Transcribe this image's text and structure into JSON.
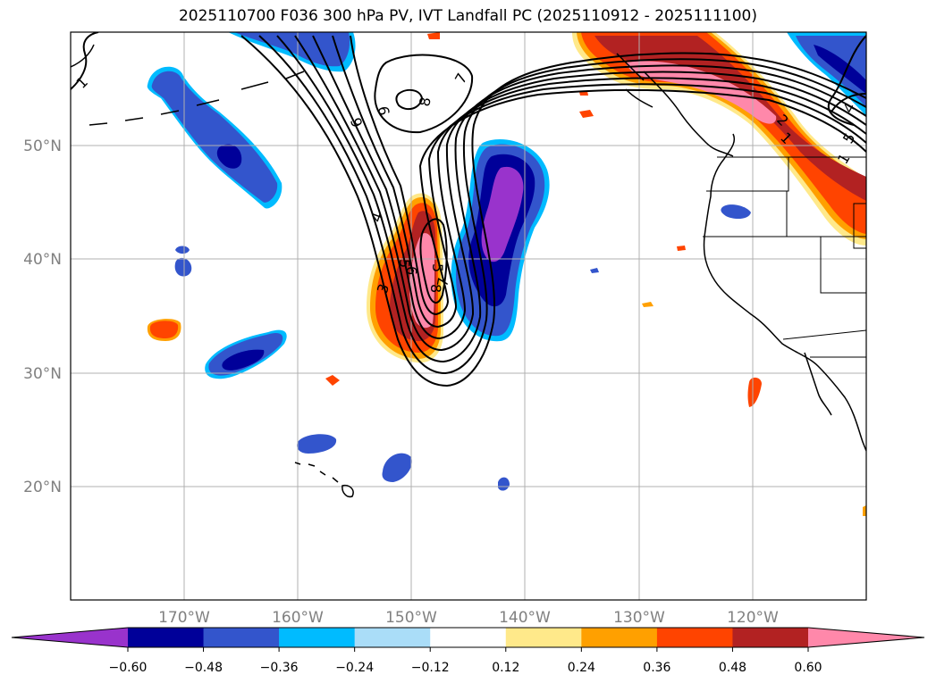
{
  "title": "2025110700 F036 300 hPa PV, IVT Landfall PC (2025110912 - 2025111100)",
  "map": {
    "lon_range": [
      -180,
      -110
    ],
    "lat_range": [
      10,
      60
    ],
    "lat_ticks": [
      {
        "value": 50,
        "label": "50°N"
      },
      {
        "value": 40,
        "label": "40°N"
      },
      {
        "value": 30,
        "label": "30°N"
      },
      {
        "value": 20,
        "label": "20°N"
      }
    ],
    "lon_ticks": [
      {
        "value": -170,
        "label": "170°W"
      },
      {
        "value": -160,
        "label": "160°W"
      },
      {
        "value": -150,
        "label": "150°W"
      },
      {
        "value": -140,
        "label": "140°W"
      },
      {
        "value": -130,
        "label": "130°W"
      },
      {
        "value": -120,
        "label": "120°W"
      }
    ],
    "grid": true,
    "contour_labels": [
      "1",
      "7",
      "8",
      "9",
      "6",
      "4",
      "5",
      "6",
      "3",
      "8",
      "7",
      "5",
      "1",
      "2",
      "1",
      "5",
      "4"
    ]
  },
  "colorbar": {
    "colors": [
      "#9933cc",
      "#000099",
      "#3355cc",
      "#00bbff",
      "#aaddf8",
      "#ffffff",
      "#ffe98a",
      "#ffa000",
      "#ff4400",
      "#b22222",
      "#ff88aa"
    ],
    "extend_left_color": "#9933cc",
    "extend_right_color": "#ff88aa",
    "labels": [
      "−0.60",
      "−0.48",
      "−0.36",
      "−0.24",
      "−0.12",
      "0.12",
      "0.24",
      "0.36",
      "0.48",
      "0.60"
    ]
  }
}
